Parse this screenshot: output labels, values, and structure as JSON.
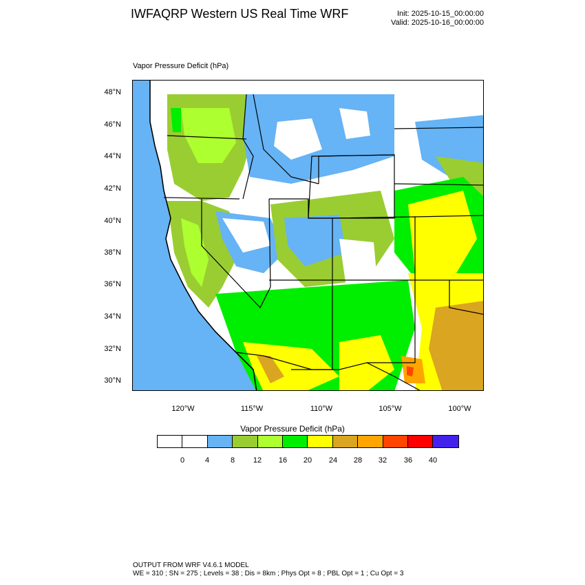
{
  "header": {
    "title": "IWFAQRP Western US Real Time WRF",
    "init": "Init: 2025-10-15_00:00:00",
    "valid": "Valid: 2025-10-16_00:00:00"
  },
  "panel": {
    "title": "Vapor Pressure Deficit   (hPa)"
  },
  "map": {
    "field": "Vapor Pressure Deficit",
    "units": "hPa",
    "lat_labels": [
      "48°N",
      "46°N",
      "44°N",
      "42°N",
      "40°N",
      "38°N",
      "36°N",
      "34°N",
      "32°N",
      "30°N"
    ],
    "lon_labels": [
      "120°W",
      "115°W",
      "110°W",
      "105°W",
      "100°W"
    ],
    "ocean_color": "#66b3f5",
    "boundary_color": "#000000"
  },
  "colorbar": {
    "title": "Vapor Pressure Deficit  (hPa)",
    "colors": [
      "#ffffff",
      "#ffffff",
      "#66b3f5",
      "#9acd32",
      "#adff2f",
      "#00ee00",
      "#ffff00",
      "#daa520",
      "#ffa500",
      "#ff4500",
      "#ff0000",
      "#4422ee"
    ],
    "labels": [
      "0",
      "4",
      "8",
      "12",
      "16",
      "20",
      "24",
      "28",
      "32",
      "36",
      "40"
    ]
  },
  "footer": {
    "line1": "OUTPUT FROM WRF V4.6.1 MODEL",
    "line2": "WE = 310 ; SN = 275 ; Levels = 38 ; Dis = 8km ; Phys Opt = 8 ; PBL Opt = 1 ; Cu Opt = 3"
  }
}
